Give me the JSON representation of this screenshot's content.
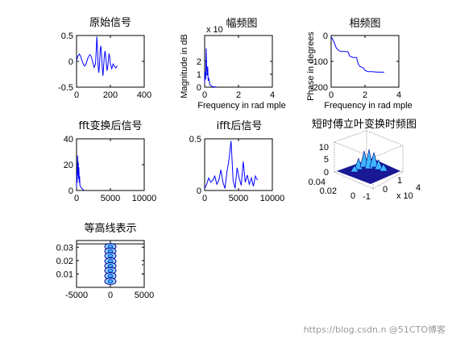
{
  "chart_data": [
    {
      "id": "orig",
      "type": "line",
      "title": "原始信号",
      "xlim": [
        0,
        400
      ],
      "ylim": [
        -0.5,
        0.5
      ],
      "xticks": [
        0,
        200,
        400
      ],
      "yticks": [
        -0.5,
        0,
        0.5
      ],
      "xticklabels": [
        "0",
        "200",
        "400"
      ],
      "yticklabels": [
        "-0.5",
        "0",
        "0.5"
      ],
      "series": [
        {
          "color": "#0000ff",
          "x": [
            0,
            8,
            16,
            24,
            32,
            40,
            48,
            56,
            64,
            72,
            80,
            88,
            96,
            104,
            112,
            116,
            120,
            124,
            128,
            132,
            136,
            140,
            144,
            148,
            152,
            156,
            160,
            164,
            168,
            172,
            176,
            180,
            184,
            188,
            192,
            196,
            200,
            208,
            216,
            224,
            232,
            240
          ],
          "y": [
            0.02,
            0.1,
            0.14,
            0.1,
            0.02,
            -0.06,
            -0.09,
            -0.05,
            0.03,
            0.1,
            0.13,
            0.08,
            -0.02,
            -0.12,
            -0.05,
            0.2,
            0.48,
            0.25,
            -0.12,
            -0.22,
            -0.02,
            0.22,
            0.3,
            0.12,
            -0.12,
            -0.28,
            -0.1,
            0.08,
            0.2,
            0.12,
            -0.05,
            -0.18,
            -0.12,
            0.02,
            0.15,
            0.08,
            -0.05,
            -0.14,
            -0.05,
            -0.1,
            -0.13,
            -0.08
          ]
        }
      ]
    },
    {
      "id": "mag",
      "type": "line",
      "title": "幅频图",
      "ylabel": "Magnitude in dB",
      "xlabel": "Frequency in rad mple",
      "exponent": "x 10",
      "xlim": [
        0,
        4
      ],
      "ylim": [
        0,
        4
      ],
      "xticks": [
        0,
        2,
        4
      ],
      "yticks": [
        0,
        1,
        2
      ],
      "xticklabels": [
        "0",
        "2",
        "4"
      ],
      "yticklabels": [
        "0",
        "1",
        "2"
      ],
      "series": [
        {
          "color": "#0000ff",
          "x": [
            0,
            0.03,
            0.06,
            0.09,
            0.12,
            0.15,
            0.18,
            0.21,
            0.25,
            0.3,
            0.35,
            0.45,
            0.55,
            0.7
          ],
          "y": [
            0.3,
            1.2,
            0.6,
            3.0,
            1.5,
            0.9,
            1.6,
            0.5,
            0.7,
            0.2,
            0.15,
            0.05,
            0.03,
            0.01
          ]
        }
      ]
    },
    {
      "id": "phase",
      "type": "line",
      "title": "相频图",
      "ylabel": "Phase in degrees",
      "xlabel": "Frequency in rad mple",
      "xlim": [
        0,
        4
      ],
      "ylim": [
        -200,
        0
      ],
      "xticks": [
        0,
        2,
        4
      ],
      "yticks": [
        -200,
        -100,
        0
      ],
      "xticklabels": [
        "0",
        "2",
        "4"
      ],
      "yticklabels": [
        "-200",
        "-100",
        "0"
      ],
      "series": [
        {
          "color": "#0000ff",
          "x": [
            0,
            0.1,
            0.2,
            0.3,
            0.4,
            0.5,
            0.6,
            0.8,
            1.0,
            1.1,
            1.3,
            1.5,
            1.6,
            1.7,
            1.9,
            2.0,
            2.1,
            2.2,
            2.4,
            2.6,
            2.8,
            3.0,
            3.14
          ],
          "y": [
            -5,
            -15,
            -30,
            -48,
            -55,
            -60,
            -62,
            -62,
            -63,
            -80,
            -85,
            -85,
            -110,
            -120,
            -125,
            -135,
            -138,
            -140,
            -140,
            -141,
            -142,
            -142,
            -142
          ]
        }
      ]
    },
    {
      "id": "fft",
      "type": "line",
      "title": "fft变换后信号",
      "xlim": [
        0,
        10000
      ],
      "ylim": [
        0,
        40
      ],
      "xticks": [
        0,
        5000,
        10000
      ],
      "yticks": [
        0,
        20,
        40
      ],
      "xticklabels": [
        "0",
        "5000",
        "10000"
      ],
      "yticklabels": [
        "0",
        "20",
        "40"
      ],
      "series": [
        {
          "color": "#0000ff",
          "x": [
            0,
            50,
            100,
            150,
            200,
            250,
            300,
            350,
            400,
            450,
            500,
            600,
            700,
            800,
            900,
            1000,
            1100
          ],
          "y": [
            2,
            14,
            6,
            27,
            12,
            22,
            9,
            18,
            6,
            11,
            4,
            3,
            2,
            1.5,
            1,
            0.5,
            0.2
          ]
        }
      ]
    },
    {
      "id": "ifft",
      "type": "line",
      "title": "ifft后信号",
      "xlim": [
        0,
        10000
      ],
      "ylim": [
        0,
        0.5
      ],
      "xticks": [
        0,
        5000,
        10000
      ],
      "yticks": [
        0,
        0.5
      ],
      "xticklabels": [
        "0",
        "5000",
        "10000"
      ],
      "yticklabels": [
        "0",
        "0.5"
      ],
      "series": [
        {
          "color": "#0000ff",
          "x": [
            0,
            300,
            600,
            900,
            1200,
            1500,
            1800,
            2100,
            2400,
            2700,
            3000,
            3300,
            3600,
            3900,
            4200,
            4500,
            4800,
            5100,
            5400,
            5700,
            6000,
            6300,
            6600,
            6900,
            7200,
            7500,
            7800
          ],
          "y": [
            0.02,
            0.06,
            0.12,
            0.08,
            0.1,
            0.14,
            0.06,
            0.1,
            0.2,
            0.08,
            0.02,
            0.18,
            0.3,
            0.48,
            0.1,
            0.02,
            0.22,
            0.12,
            0.05,
            0.28,
            0.08,
            0.15,
            0.06,
            0.12,
            0.04,
            0.14,
            0.1
          ]
        }
      ]
    },
    {
      "id": "stft",
      "type": "surface",
      "title": "短时傅立叶变换时频图",
      "zticks": [
        "0",
        "5",
        "10"
      ],
      "yticks": [
        "0.04",
        "0.02",
        "0"
      ],
      "xticks": [
        "-1",
        "0",
        "1"
      ],
      "exponent": "x 10",
      "exponent_power": "4"
    },
    {
      "id": "contour",
      "type": "contour",
      "title": "等高线表示",
      "xlim": [
        -5000,
        5000
      ],
      "ylim": [
        0,
        0.035
      ],
      "xticks": [
        -5000,
        0,
        5000
      ],
      "yticks": [
        0.01,
        0.02,
        0.03
      ],
      "xticklabels": [
        "-5000",
        "0",
        "5000"
      ],
      "yticklabels": [
        "0.01",
        "0.02",
        "0.03"
      ],
      "blobs": [
        {
          "x": 0,
          "y": 0.0305
        },
        {
          "x": 0,
          "y": 0.027
        },
        {
          "x": 0,
          "y": 0.0235
        },
        {
          "x": 0,
          "y": 0.0195
        },
        {
          "x": 0,
          "y": 0.016
        },
        {
          "x": 0,
          "y": 0.0125
        },
        {
          "x": 0,
          "y": 0.0085
        },
        {
          "x": 0,
          "y": 0.0045
        }
      ]
    }
  ],
  "colors": {
    "line": "#0000ff",
    "axis": "#000000",
    "surface_dark": "#00008b",
    "surface_light": "#3fb6ff"
  },
  "watermark": "https://blog.csdn.n  @51CTO博客"
}
